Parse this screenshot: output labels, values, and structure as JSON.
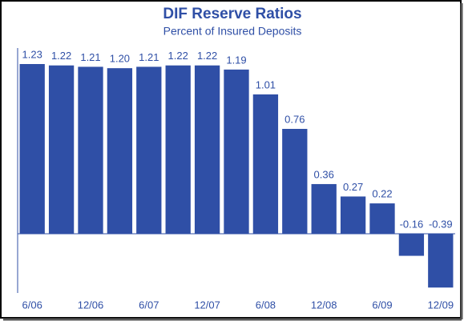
{
  "chart_data": {
    "type": "bar",
    "title": "DIF Reserve Ratios",
    "subtitle": "Percent of Insured Deposits",
    "categories": [
      "6/06",
      null,
      "12/06",
      null,
      "6/07",
      null,
      "12/07",
      null,
      "6/08",
      null,
      "12/08",
      null,
      "6/09",
      null,
      "12/09"
    ],
    "values": [
      1.23,
      1.22,
      1.21,
      1.2,
      1.21,
      1.22,
      1.22,
      1.19,
      1.01,
      0.76,
      0.36,
      0.27,
      0.22,
      -0.16,
      -0.39
    ],
    "value_labels": [
      "1.23",
      "1.22",
      "1.21",
      "1.20",
      "1.21",
      "1.22",
      "1.22",
      "1.19",
      "1.01",
      "0.76",
      "0.36",
      "0.27",
      "0.22",
      "-0.16",
      "-0.39"
    ],
    "color": "#2f4fa6"
  }
}
